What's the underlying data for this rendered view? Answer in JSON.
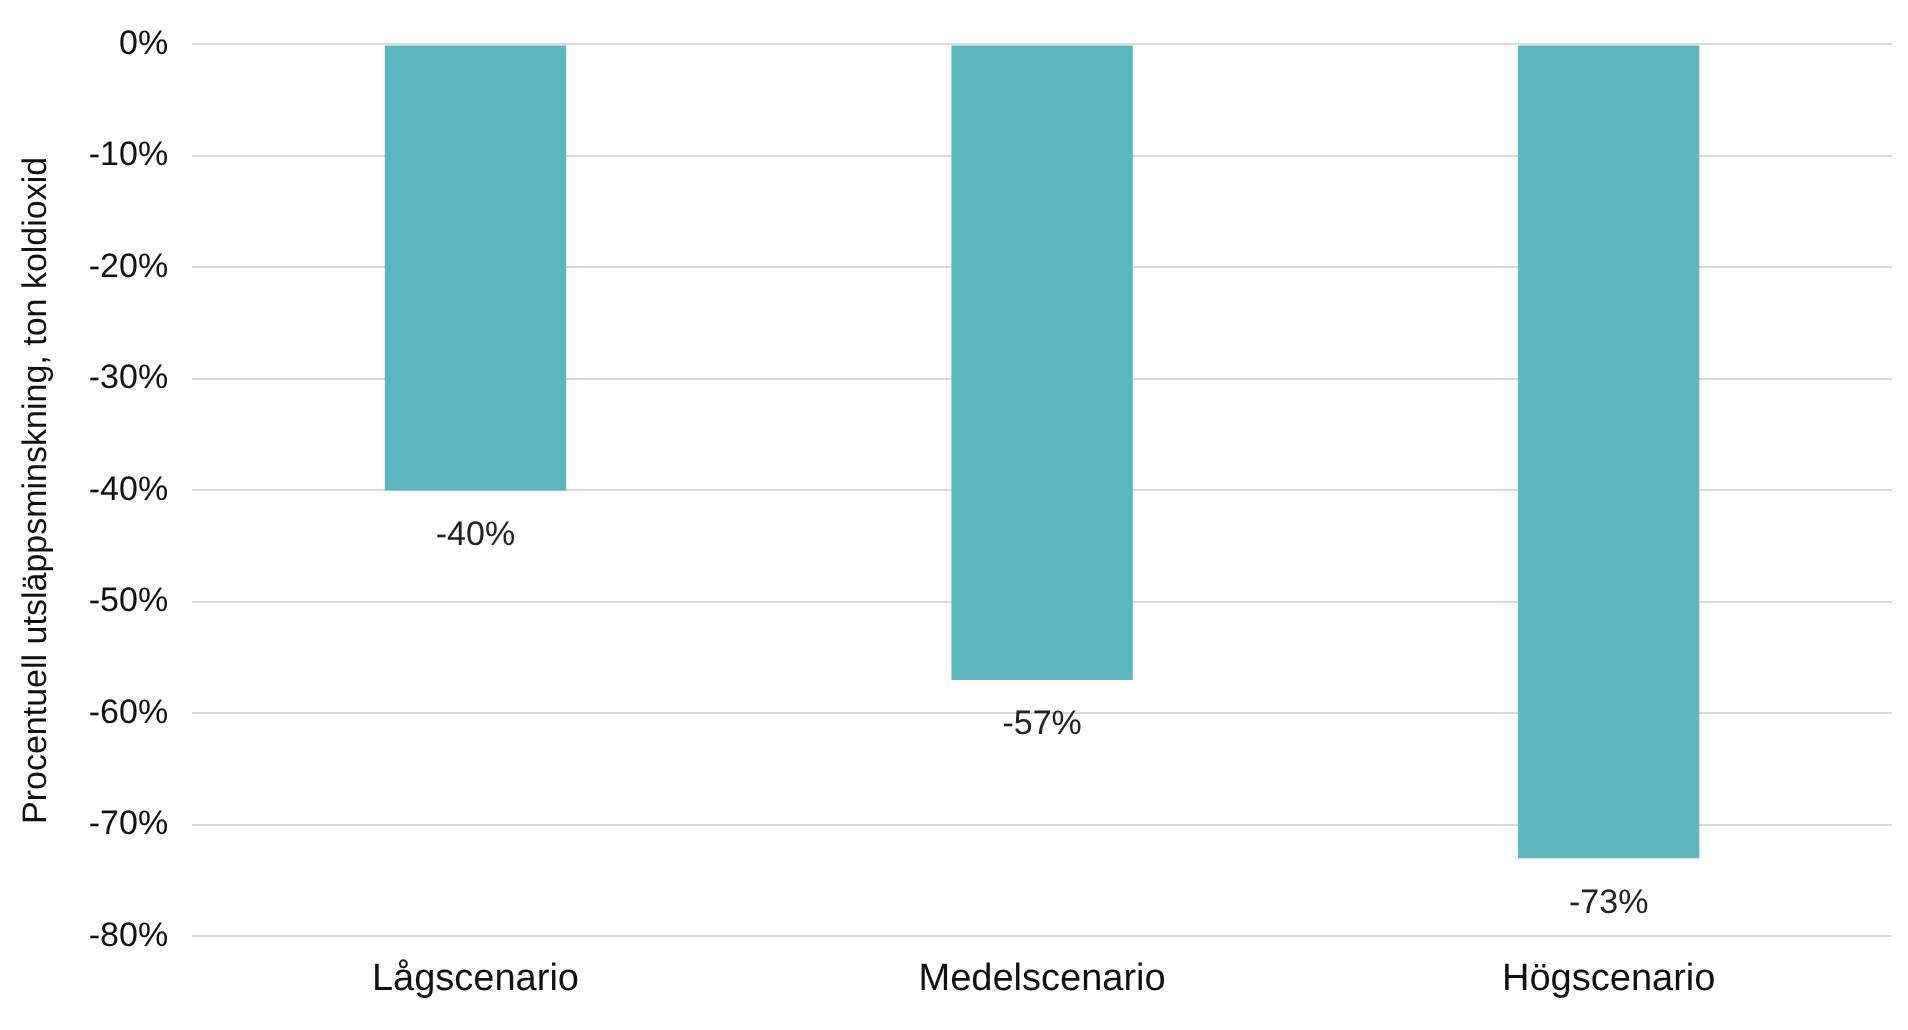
{
  "chart_data": {
    "type": "bar",
    "ylabel": "Procentuell utsläppsminskning, ton koldioxid",
    "categories": [
      "Lågscenario",
      "Medelscenario",
      "Högscenario"
    ],
    "values": [
      -40,
      -57,
      -73
    ],
    "color": "#5bb7bd",
    "value_labels": [
      "-40%",
      "-57%",
      "-73%"
    ],
    "ylim": [
      -80,
      0
    ],
    "yticks": [
      {
        "value": 0,
        "label": "0%"
      },
      {
        "value": -10,
        "label": "-10%"
      },
      {
        "value": -20,
        "label": "-20%"
      },
      {
        "value": -30,
        "label": "-30%"
      },
      {
        "value": -40,
        "label": "-40%"
      },
      {
        "value": -50,
        "label": "-50%"
      },
      {
        "value": -60,
        "label": "-60%"
      },
      {
        "value": -70,
        "label": "-70%"
      },
      {
        "value": -80,
        "label": "-80%"
      }
    ],
    "grid": "y",
    "legend": false
  }
}
